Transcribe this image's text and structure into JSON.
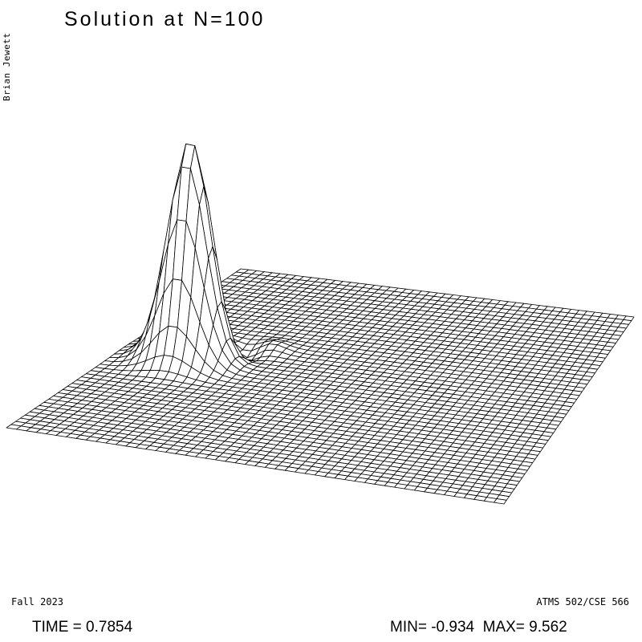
{
  "chart_data": {
    "type": "surface-wireframe",
    "title": "Solution at N=100",
    "author": "Brian Jewett",
    "term": "Fall 2023",
    "course": "ATMS 502/CSE 566",
    "time_label": "TIME = 0.7854",
    "minmax_label": "MIN= -0.934  MAX= 9.562",
    "min": -0.934,
    "max": 9.562,
    "time": 0.7854,
    "grid_lines": [
      50,
      50
    ],
    "line_color": "#000000",
    "fill_color": "#ffffff"
  }
}
